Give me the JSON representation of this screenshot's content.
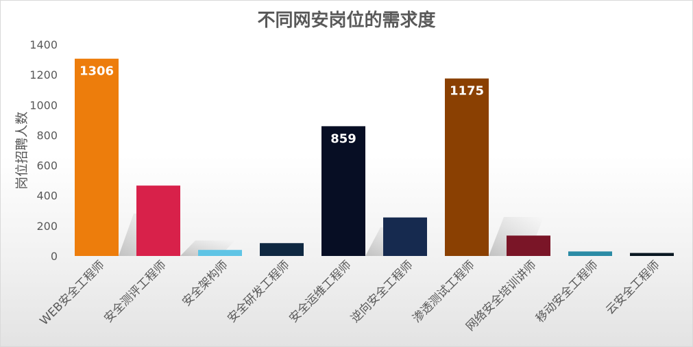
{
  "chart_data": {
    "type": "bar",
    "title": "不同网安岗位的需求度",
    "xlabel": "",
    "ylabel": "岗位招聘人数",
    "ylim": [
      0,
      1400
    ],
    "yticks": [
      0,
      200,
      400,
      600,
      800,
      1000,
      1200,
      1400
    ],
    "grid": false,
    "categories": [
      "WEB安全工程师",
      "安全测评工程师",
      "安全架构师",
      "安全研发工程师",
      "安全运维工程师",
      "逆向安全工程师",
      "渗透测试工程师",
      "网络安全培训讲师",
      "移动安全工程师",
      "云安全工程师"
    ],
    "values": [
      1306,
      466,
      40,
      85,
      859,
      255,
      1175,
      135,
      30,
      20
    ],
    "data_labels": [
      "1306",
      "",
      "",
      "",
      "859",
      "",
      "1175",
      "",
      "",
      ""
    ],
    "colors": [
      "#ed7d0c",
      "#d8214a",
      "#5fc4e5",
      "#0f2841",
      "#070e24",
      "#162a4f",
      "#8a4002",
      "#7a1527",
      "#2b8ba5",
      "#0a1822"
    ]
  }
}
